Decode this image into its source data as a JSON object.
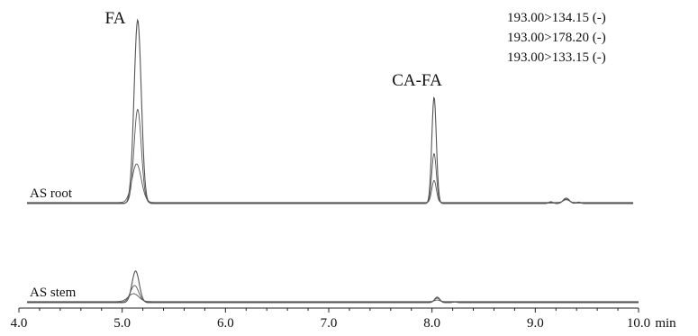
{
  "chart_data": {
    "type": "line",
    "title": "",
    "xlabel": "",
    "x_unit": "min",
    "xlim": [
      4.0,
      10.0
    ],
    "x_ticks": [
      "4.0",
      "5.0",
      "6.0",
      "7.0",
      "8.0",
      "9.0",
      "10.0"
    ],
    "peak_labels": [
      {
        "text": "FA",
        "x": 5.15
      },
      {
        "text": "CA-FA",
        "x": 8.02
      }
    ],
    "legend": {
      "placement": "top-right",
      "entries": [
        "193.00>134.15 (-)",
        "193.00>178.20 (-)",
        "193.00>133.15 (-)"
      ]
    },
    "trace_color": "#555555",
    "panels": [
      {
        "label": "AS root",
        "series": [
          {
            "name": "193.00>134.15 (-)",
            "peaks": [
              {
                "x": 5.15,
                "h": 1.0,
                "w": 0.035
              },
              {
                "x": 8.02,
                "h": 0.58,
                "w": 0.022
              },
              {
                "x": 9.3,
                "h": 0.03,
                "w": 0.03
              },
              {
                "x": 9.15,
                "h": 0.01,
                "w": 0.02
              },
              {
                "x": 9.42,
                "h": 0.008,
                "w": 0.02
              }
            ]
          },
          {
            "name": "193.00>178.20 (-)",
            "peaks": [
              {
                "x": 5.15,
                "h": 0.51,
                "w": 0.035
              },
              {
                "x": 8.02,
                "h": 0.27,
                "w": 0.022
              },
              {
                "x": 9.3,
                "h": 0.02,
                "w": 0.03
              }
            ]
          },
          {
            "name": "193.00>133.15 (-)",
            "peaks": [
              {
                "x": 5.14,
                "h": 0.21,
                "w": 0.045
              },
              {
                "x": 8.02,
                "h": 0.12,
                "w": 0.022
              },
              {
                "x": 9.3,
                "h": 0.015,
                "w": 0.03
              }
            ]
          }
        ]
      },
      {
        "label": "AS stem",
        "series": [
          {
            "name": "193.00>134.15 (-)",
            "peaks": [
              {
                "x": 5.13,
                "h": 0.4,
                "w": 0.035
              },
              {
                "x": 8.05,
                "h": 0.07,
                "w": 0.025
              },
              {
                "x": 8.22,
                "h": 0.01,
                "w": 0.02
              }
            ]
          },
          {
            "name": "193.00>178.20 (-)",
            "peaks": [
              {
                "x": 5.12,
                "h": 0.21,
                "w": 0.04
              },
              {
                "x": 8.05,
                "h": 0.05,
                "w": 0.025
              }
            ]
          },
          {
            "name": "193.00>133.15 (-)",
            "peaks": [
              {
                "x": 5.11,
                "h": 0.1,
                "w": 0.05
              },
              {
                "x": 8.05,
                "h": 0.02,
                "w": 0.025
              }
            ]
          }
        ]
      }
    ]
  }
}
